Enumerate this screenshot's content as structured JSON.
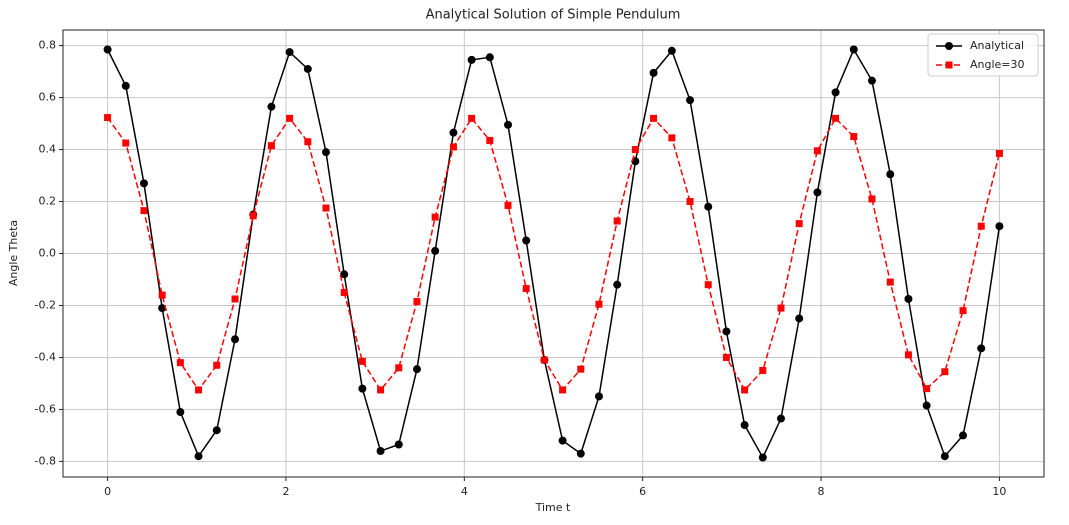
{
  "chart_data": {
    "type": "line",
    "title": "Analytical Solution of Simple Pendulum",
    "xlabel": "Time t",
    "ylabel": "Angle Theta",
    "x": [
      0,
      0.204,
      0.408,
      0.612,
      0.816,
      1.02,
      1.224,
      1.429,
      1.633,
      1.837,
      2.041,
      2.245,
      2.449,
      2.653,
      2.857,
      3.061,
      3.265,
      3.469,
      3.673,
      3.878,
      4.082,
      4.286,
      4.49,
      4.694,
      4.898,
      5.102,
      5.306,
      5.51,
      5.714,
      5.918,
      6.122,
      6.327,
      6.531,
      6.735,
      6.939,
      7.143,
      7.347,
      7.551,
      7.755,
      7.959,
      8.163,
      8.367,
      8.571,
      8.776,
      8.98,
      9.184,
      9.388,
      9.592,
      9.796,
      10
    ],
    "series": [
      {
        "name": "Analytical",
        "color": "#000000",
        "linestyle": "solid",
        "marker": "circle",
        "values": [
          0.785,
          0.645,
          0.27,
          -0.21,
          -0.61,
          -0.78,
          -0.68,
          -0.33,
          0.15,
          0.565,
          0.775,
          0.71,
          0.39,
          -0.08,
          -0.52,
          -0.76,
          -0.735,
          -0.445,
          0.01,
          0.465,
          0.745,
          0.755,
          0.495,
          0.05,
          -0.41,
          -0.72,
          -0.77,
          -0.55,
          -0.12,
          0.355,
          0.695,
          0.78,
          0.59,
          0.18,
          -0.3,
          -0.66,
          -0.785,
          -0.635,
          -0.25,
          0.235,
          0.62,
          0.785,
          0.665,
          0.305,
          -0.175,
          -0.585,
          -0.78,
          -0.7,
          -0.365,
          0.105
        ]
      },
      {
        "name": "Angle=30",
        "color": "#ff0000",
        "linestyle": "dashed",
        "marker": "square",
        "values": [
          0.523,
          0.425,
          0.165,
          -0.16,
          -0.42,
          -0.525,
          -0.43,
          -0.175,
          0.145,
          0.415,
          0.52,
          0.43,
          0.175,
          -0.15,
          -0.415,
          -0.525,
          -0.44,
          -0.185,
          0.14,
          0.41,
          0.52,
          0.435,
          0.185,
          -0.135,
          -0.41,
          -0.525,
          -0.445,
          -0.195,
          0.125,
          0.4,
          0.52,
          0.445,
          0.2,
          -0.12,
          -0.4,
          -0.525,
          -0.45,
          -0.21,
          0.115,
          0.395,
          0.52,
          0.45,
          0.21,
          -0.11,
          -0.39,
          -0.52,
          -0.455,
          -0.22,
          0.105,
          0.385
        ]
      }
    ],
    "xlim": [
      -0.5,
      10.5
    ],
    "xticks": [
      0,
      2,
      4,
      6,
      8,
      10
    ],
    "ylim": [
      -0.86,
      0.86
    ],
    "yticks": [
      -0.8,
      -0.6,
      -0.4,
      -0.2,
      {
        "value": 0,
        "label": "0.0"
      },
      0.2,
      0.4,
      0.6,
      0.8
    ],
    "grid": true,
    "legend": "upper right"
  }
}
